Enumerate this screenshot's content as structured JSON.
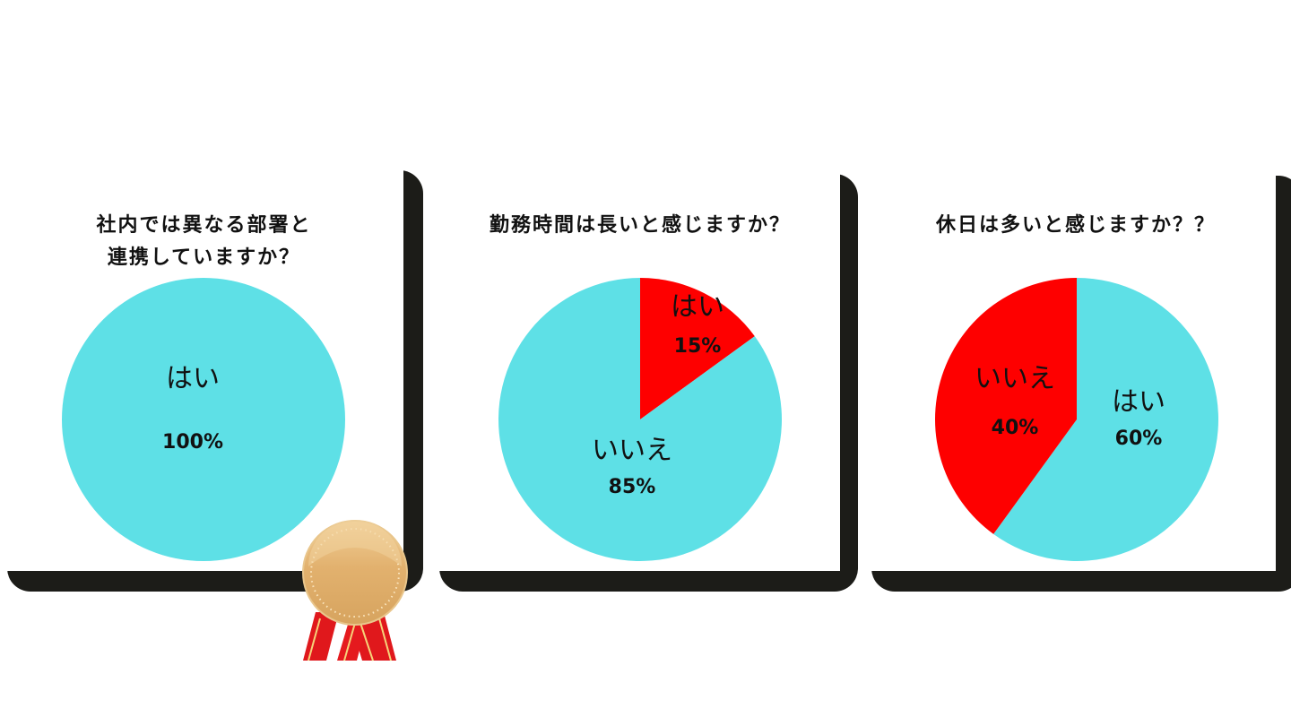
{
  "chart_data": [
    {
      "type": "pie",
      "title": "社内では異なる部署と\n連携していますか？",
      "title_lines": [
        "社内では異なる部署と",
        "連携していますか？"
      ],
      "slices": [
        {
          "label": "はい",
          "value": 100,
          "display": "100%",
          "color": "#5ee0e6"
        }
      ]
    },
    {
      "type": "pie",
      "title": "勤務時間は長いと感じますか？",
      "title_lines": [
        "勤務時間は長いと感じますか？"
      ],
      "slices": [
        {
          "label": "はい",
          "value": 15,
          "display": "15%",
          "color": "#fe0000"
        },
        {
          "label": "いいえ",
          "value": 85,
          "display": "85%",
          "color": "#5ee0e6"
        }
      ]
    },
    {
      "type": "pie",
      "title": "休日は多いと感じますか？？",
      "title_lines": [
        "休日は多いと感じますか？？"
      ],
      "slices": [
        {
          "label": "はい",
          "value": 60,
          "display": "60%",
          "color": "#5ee0e6"
        },
        {
          "label": "いいえ",
          "value": 40,
          "display": "40%",
          "color": "#fe0000"
        }
      ]
    }
  ],
  "decoration": {
    "medal_icon": "bronze-medal-ribbon",
    "card_shadow_color": "#1c1c18"
  }
}
